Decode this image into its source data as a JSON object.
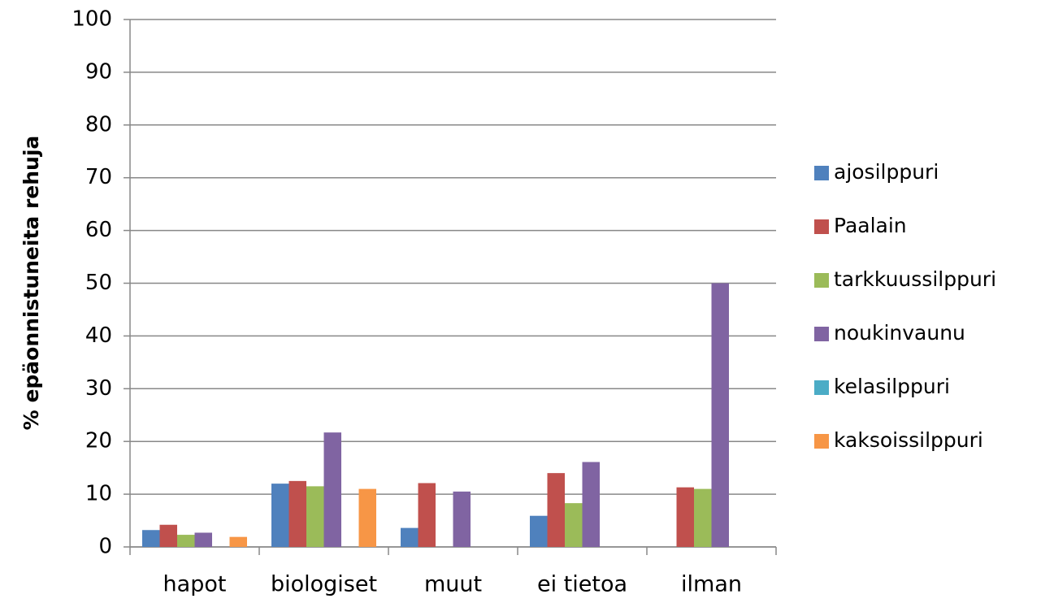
{
  "chart_data": {
    "type": "bar",
    "y_label": "% epäonnistuneita rehuja",
    "categories": [
      "hapot",
      "biologiset",
      "muut",
      "ei tietoa",
      "ilman"
    ],
    "series": [
      {
        "name": "ajosilppuri",
        "color": "#4f81bd",
        "values": [
          3.2,
          12,
          3.6,
          5.9,
          0
        ]
      },
      {
        "name": "Paalain",
        "color": "#c0504d",
        "values": [
          4.2,
          12.5,
          12.1,
          14,
          11.3
        ]
      },
      {
        "name": "tarkkuussilppuri",
        "color": "#9bbb59",
        "values": [
          2.3,
          11.5,
          0,
          8.3,
          11
        ]
      },
      {
        "name": "noukinvaunu",
        "color": "#8064a2",
        "values": [
          2.7,
          21.7,
          10.5,
          16.1,
          50
        ]
      },
      {
        "name": "kelasilppuri",
        "color": "#4bacc6",
        "values": [
          0,
          0,
          0,
          0,
          0
        ]
      },
      {
        "name": "kaksoissilppuri",
        "color": "#f79646",
        "values": [
          1.9,
          11,
          0,
          0,
          0
        ]
      }
    ],
    "ylim": [
      0,
      100
    ],
    "yticks": [
      0,
      10,
      20,
      30,
      40,
      50,
      60,
      70,
      80,
      90,
      100
    ],
    "grid": true,
    "legend": "right"
  }
}
